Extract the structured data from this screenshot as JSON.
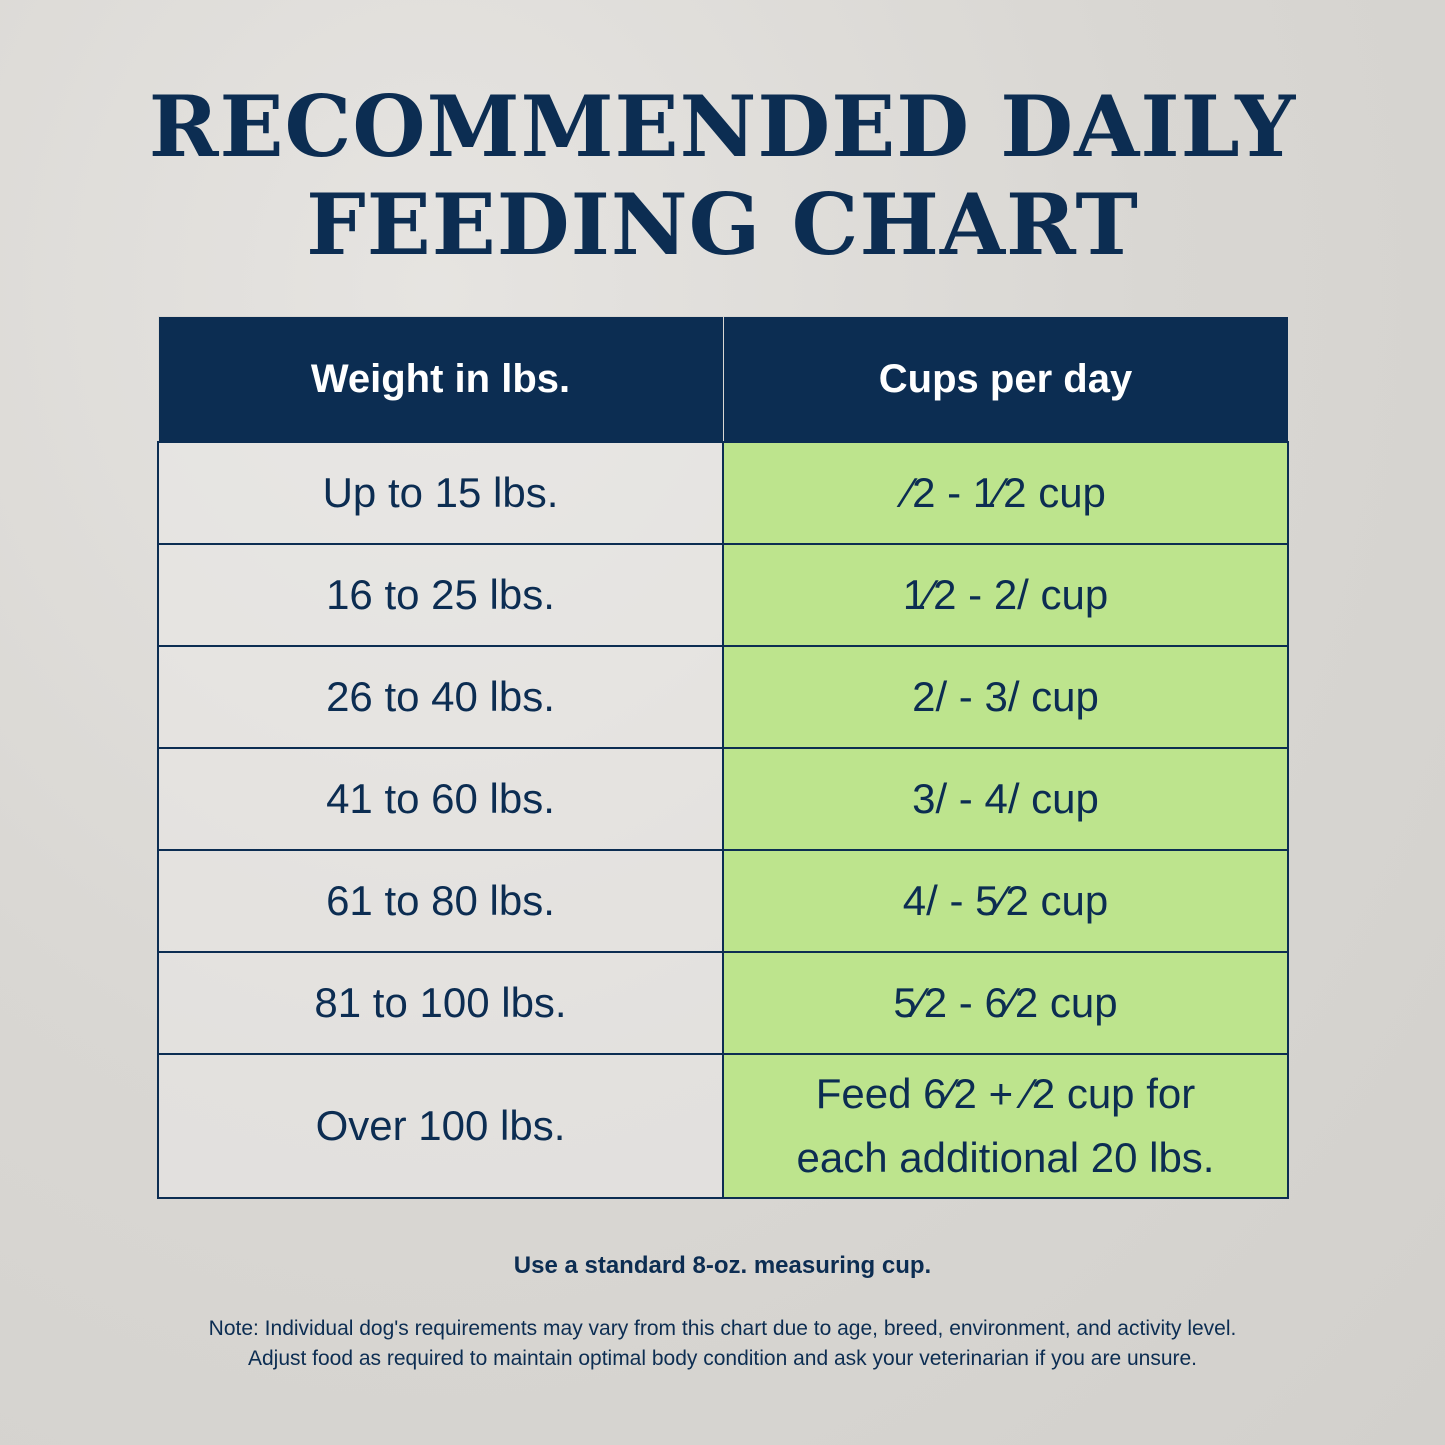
{
  "title": {
    "line1": "RECOMMENDED DAILY",
    "line2": "FEEDING CHART"
  },
  "table": {
    "headers": [
      "Weight in lbs.",
      "Cups per day"
    ],
    "rows": [
      {
        "weight": "Up to 15 lbs.",
        "cups": "⁄2 - 1⁄2 cup"
      },
      {
        "weight": "16 to 25 lbs.",
        "cups": "1⁄2  - 2/ cup"
      },
      {
        "weight": "26 to 40 lbs.",
        "cups": "2/ - 3/ cup"
      },
      {
        "weight": "41 to 60 lbs.",
        "cups": "3/ - 4/ cup"
      },
      {
        "weight": "61 to 80 lbs.",
        "cups": "4/ - 5⁄2 cup"
      },
      {
        "weight": "81 to 100 lbs.",
        "cups": "5⁄2 - 6⁄2 cup"
      },
      {
        "weight": "Over 100 lbs.",
        "cups_line1": "Feed 6⁄2 + ⁄2 cup for",
        "cups_line2": "each additional 20 lbs."
      }
    ]
  },
  "measuring_note": "Use a standard 8-oz. measuring cup.",
  "disclaimer": {
    "line1": "Note: Individual dog's requirements may vary from this chart due to age, breed, environment, and activity level.",
    "line2": "Adjust food as required to maintain optimal body condition and ask your veterinarian if you are unsure."
  },
  "colors": {
    "navy": "#0c2d52",
    "green": "#bde48d"
  }
}
